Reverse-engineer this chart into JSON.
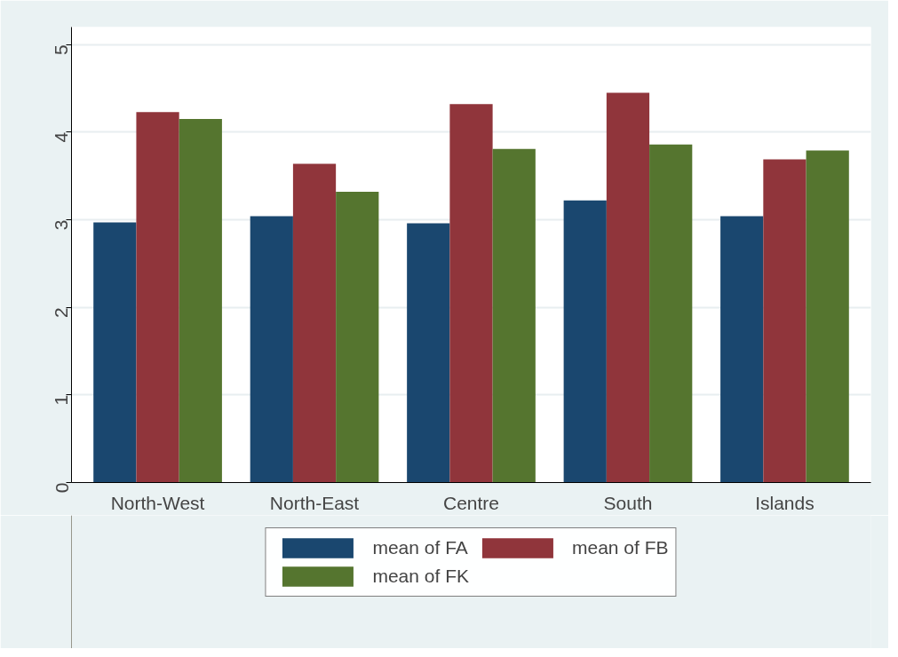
{
  "chart_data": {
    "type": "bar",
    "categories": [
      "North-West",
      "North-East",
      "Centre",
      "South",
      "Islands"
    ],
    "series": [
      {
        "name": "mean of FA",
        "color": "#1a476f",
        "values": [
          2.97,
          3.04,
          2.96,
          3.22,
          3.04
        ]
      },
      {
        "name": "mean of FB",
        "color": "#90353b",
        "values": [
          4.23,
          3.64,
          4.32,
          4.45,
          3.69
        ]
      },
      {
        "name": "mean of FK",
        "color": "#55752f",
        "values": [
          4.15,
          3.32,
          3.81,
          3.86,
          3.79
        ]
      }
    ],
    "ylim": [
      0,
      5.2
    ],
    "yticks": [
      0,
      1,
      2,
      3,
      4,
      5
    ],
    "grid": "y",
    "legend": "bottom"
  }
}
